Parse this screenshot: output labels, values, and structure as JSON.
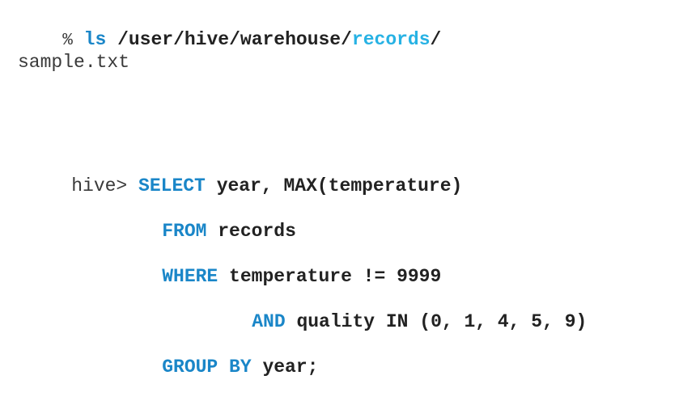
{
  "colors": {
    "keyword": "#1a86c8",
    "highlight": "#27b2e4",
    "text": "#222222",
    "muted": "#3a3a3a"
  },
  "shell": {
    "prompt": "%",
    "command": "ls",
    "path_prefix": "/user/hive/warehouse/",
    "path_highlight": "records",
    "path_suffix": "/",
    "output": "sample.txt"
  },
  "hive": {
    "prompt": "hive>",
    "lines": [
      {
        "keyword": "SELECT",
        "rest": "year, MAX(temperature)"
      },
      {
        "keyword": "FROM",
        "rest": "records"
      },
      {
        "keyword": "WHERE",
        "rest": "temperature != 9999"
      },
      {
        "keyword": "AND",
        "rest": "quality IN (0, 1, 4, 5, 9)"
      },
      {
        "keyword": "GROUP BY",
        "rest": "year;"
      }
    ]
  }
}
